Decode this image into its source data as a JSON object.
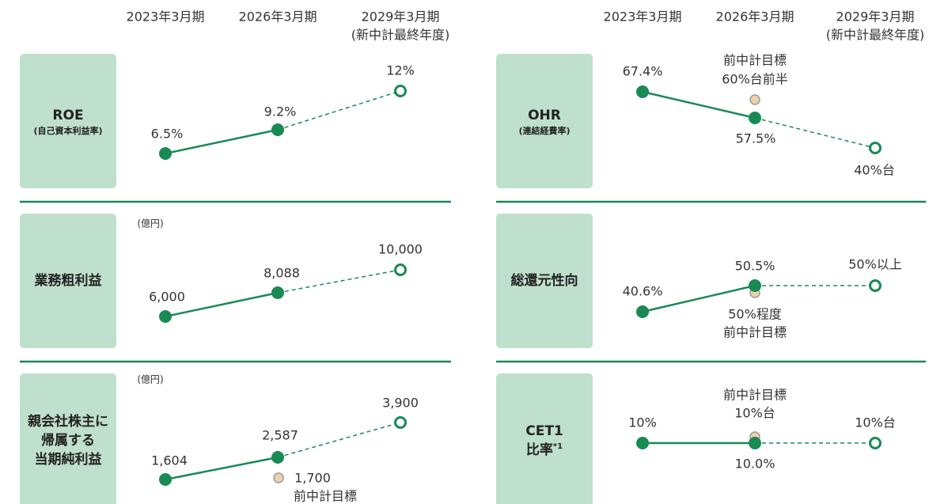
{
  "headers": {
    "years": [
      "2023年3月期",
      "2026年3月期",
      "2029年3月期"
    ],
    "final_note": "(新中計最終年度)"
  },
  "panels": [
    {
      "title": [
        "ROE"
      ],
      "subtitle": "(自己資本利益率)",
      "points": [
        "6.5%",
        "9.2%",
        "12%"
      ]
    },
    {
      "title": [
        "OHR"
      ],
      "subtitle": "(連結経費率)",
      "points": [
        "67.4%",
        "57.5%",
        "40%台"
      ],
      "target": [
        "前中計目標",
        "60%台前半"
      ]
    },
    {
      "title": [
        "業務粗利益"
      ],
      "unit": "(億円)",
      "points": [
        "6,000",
        "8,088",
        "10,000"
      ]
    },
    {
      "title": [
        "総還元性向"
      ],
      "points": [
        "40.6%",
        "50.5%",
        "50%以上"
      ],
      "target": [
        "50%程度",
        "前中計目標"
      ]
    },
    {
      "title": [
        "親会社株主に",
        "帰属する",
        "当期純利益"
      ],
      "unit": "(億円)",
      "points": [
        "1,604",
        "2,587",
        "3,900"
      ],
      "target": [
        "1,700",
        "前中計目標"
      ]
    },
    {
      "title": [
        "CET1",
        "比率"
      ],
      "note": "*1",
      "points": [
        "10%",
        "10.0%",
        "10%台"
      ],
      "target": [
        "前中計目標",
        "10%台"
      ]
    }
  ]
}
